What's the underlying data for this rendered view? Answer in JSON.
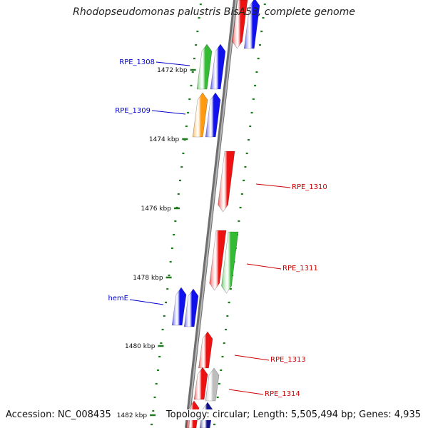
{
  "title": "Rhodopseudomonas palustris BisA53, complete genome",
  "footer": {
    "accession": "Accession: NC_008435",
    "topology": "Topology: circular; Length: 5,505,494 bp; Genes: 4,935"
  },
  "colors": {
    "backbone": "#8a8a8a",
    "tick": "#1f7a1f",
    "label_forward": "#0000cc",
    "label_reverse": "#cc0000",
    "gene_red": "#ee1111",
    "gene_blue": "#1111ee",
    "gene_green": "#33bb33",
    "gene_orange": "#ff9a11",
    "gene_grey": "#bdbdbd",
    "gene_navy": "#12128a"
  },
  "kbp_labels": [
    "1472 kbp",
    "1474 kbp",
    "1476 kbp",
    "1478 kbp",
    "1480 kbp",
    "1482 kbp"
  ],
  "gene_labels": [
    {
      "id": "RPE_1308",
      "strand": "forward"
    },
    {
      "id": "RPE_1309",
      "strand": "forward"
    },
    {
      "id": "RPE_1310",
      "strand": "reverse"
    },
    {
      "id": "RPE_1311",
      "strand": "reverse"
    },
    {
      "id": "hemE",
      "strand": "forward"
    },
    {
      "id": "RPE_1313",
      "strand": "reverse"
    },
    {
      "id": "RPE_1314",
      "strand": "reverse"
    }
  ]
}
